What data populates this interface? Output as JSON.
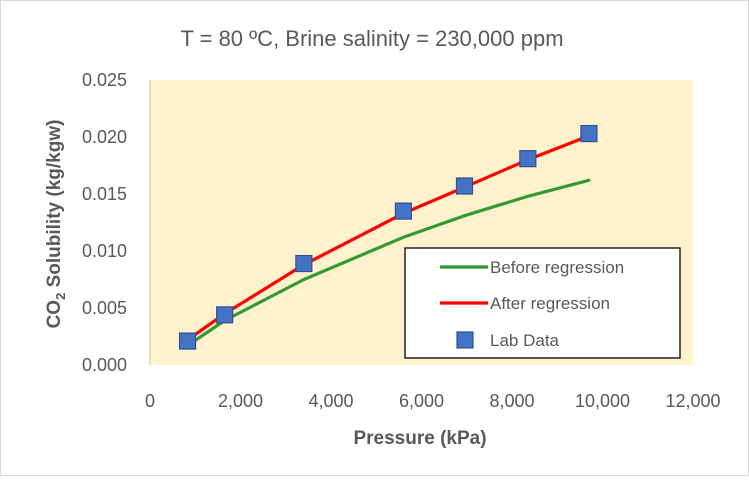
{
  "chart_data": {
    "type": "line",
    "title": "T = 80 ºC, Brine salinity = 230,000 ppm",
    "xlabel": "Pressure (kPa)",
    "ylabel_main": "CO",
    "ylabel_sub": "2",
    "ylabel_rest": " Solubility (kg/kgw)",
    "xlim": [
      0,
      12000
    ],
    "ylim": [
      0,
      0.025
    ],
    "x_ticks": [
      0,
      2000,
      4000,
      6000,
      8000,
      10000,
      12000
    ],
    "x_tick_labels": [
      "0",
      "2,000",
      "4,000",
      "6,000",
      "8,000",
      "10,000",
      "12,000"
    ],
    "y_ticks": [
      0,
      0.005,
      0.01,
      0.015,
      0.02,
      0.025
    ],
    "y_tick_labels": [
      "0.000",
      "0.005",
      "0.010",
      "0.015",
      "0.020",
      "0.025"
    ],
    "grid": false,
    "legend_placement": "bottom-right",
    "plot_background": "#fff2cc",
    "series": [
      {
        "name": "Before regression",
        "kind": "line",
        "color": "#339933",
        "x": [
          830,
          1650,
          3400,
          5600,
          6950,
          8350,
          9700
        ],
        "y": [
          0.0017,
          0.0039,
          0.0075,
          0.0112,
          0.0131,
          0.0148,
          0.0162
        ]
      },
      {
        "name": "After regression",
        "kind": "line",
        "color": "#ff0000",
        "x": [
          830,
          1650,
          3400,
          5600,
          6950,
          8350,
          9700
        ],
        "y": [
          0.0022,
          0.0045,
          0.0088,
          0.0133,
          0.0156,
          0.018,
          0.0201
        ]
      },
      {
        "name": "Lab Data",
        "kind": "scatter",
        "color": "#4472c4",
        "x": [
          830,
          1650,
          3400,
          5600,
          6950,
          8350,
          9700
        ],
        "y": [
          0.0021,
          0.0044,
          0.0089,
          0.0135,
          0.0157,
          0.0181,
          0.0203
        ]
      }
    ]
  }
}
